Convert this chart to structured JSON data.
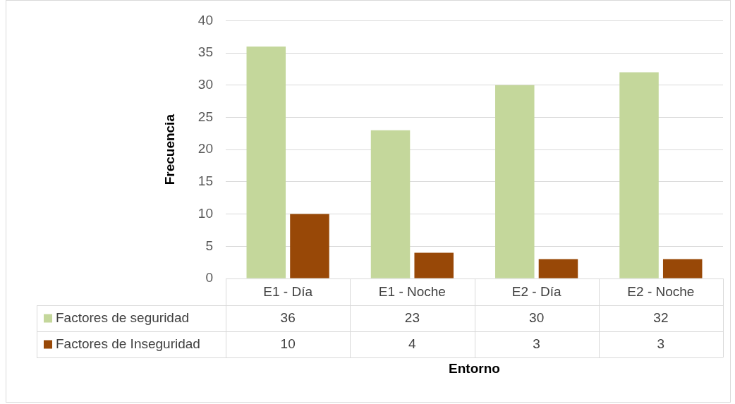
{
  "chart_data": {
    "type": "bar",
    "xlabel": "Entorno",
    "ylabel": "Frecuencia",
    "categories": [
      "E1 - Día",
      "E1 - Noche",
      "E2 - Día",
      "E2 - Noche"
    ],
    "series": [
      {
        "name": "Factores de seguridad",
        "color": "#c4d79b",
        "values": [
          36,
          23,
          30,
          32
        ]
      },
      {
        "name": "Factores de Inseguridad",
        "color": "#984807",
        "values": [
          10,
          4,
          3,
          3
        ]
      }
    ],
    "ylim": [
      0,
      40
    ],
    "yticks": [
      0,
      5,
      10,
      15,
      20,
      25,
      30,
      35,
      40
    ],
    "grid": "y",
    "legend": "bottom",
    "data_labels": true
  }
}
